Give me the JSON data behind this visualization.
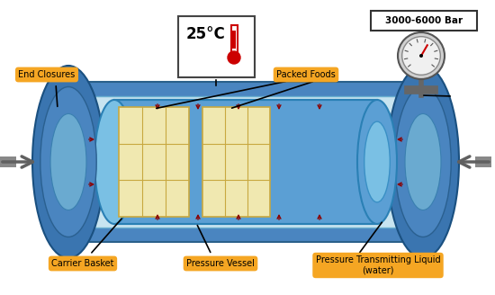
{
  "bg_color": "#ffffff",
  "label_box_color": "#f5a623",
  "vessel_outer_color": "#4a85c0",
  "vessel_mid_color": "#5b9fd4",
  "vessel_inner_color": "#c8e4f0",
  "end_cap_dark": "#3a75b0",
  "end_cap_mid": "#4a85c0",
  "end_cap_light": "#6aaad0",
  "cylinder_body": "#5b9fd4",
  "cylinder_highlight": "#7ac0e4",
  "cylinder_dark": "#3a80b5",
  "food_fill": "#f0e8b0",
  "food_grid": "#c8a840",
  "arrow_dark": "#606060",
  "pressure_arrow": "#8b0000",
  "temp_box_border": "#444444",
  "gauge_outer": "#d0d0d0",
  "gauge_inner": "#f0f0f0",
  "gauge_needle": "#cc0000",
  "therm_red": "#cc0000",
  "labels": {
    "end_closures": "End Closures",
    "packed_foods": "Packed Foods",
    "carrier_basket": "Carrier Basket",
    "pressure_vessel": "Pressure Vessel",
    "pressure_liquid": "Pressure Transmitting Liquid\n(water)",
    "temperature": "25°C",
    "pressure": "3000-6000 Bar"
  }
}
